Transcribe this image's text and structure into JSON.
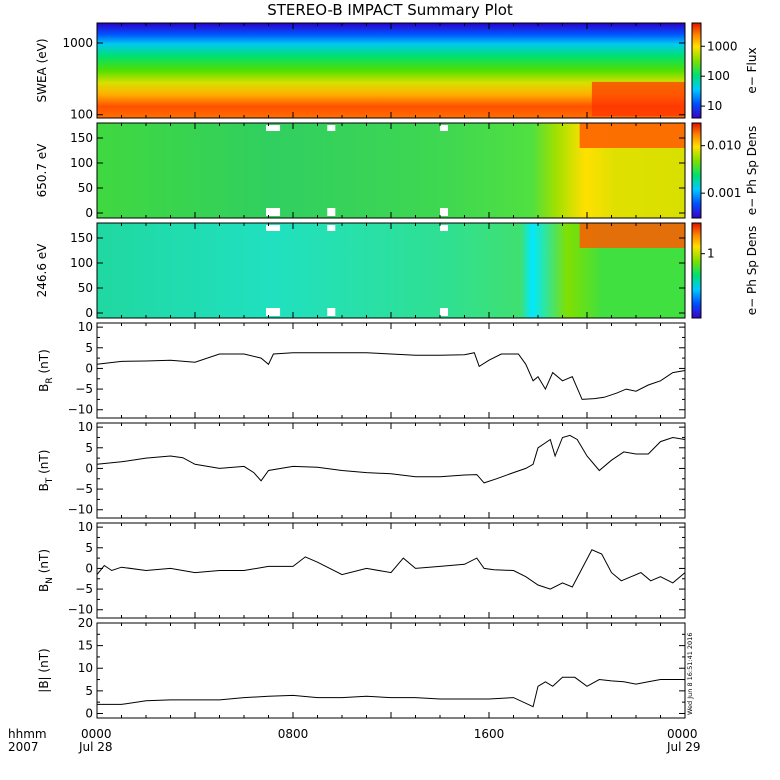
{
  "title": "STEREO-B IMPACT Summary Plot",
  "footer": {
    "row1_left": "hhmm",
    "row2_left": "2007",
    "stamp": "Wed Jun  8 16:51:41 2016"
  },
  "colors": {
    "line": "#000000",
    "mask": "#ffffff",
    "spectro_scale": [
      "#3a00c8",
      "#0050ff",
      "#00c8ff",
      "#00e070",
      "#7de000",
      "#ffe000",
      "#ff8000",
      "#e01000"
    ]
  },
  "chart_data": [
    {
      "type": "heatmap",
      "id": "swea",
      "ylabel": "SWEA (eV)",
      "yscale": "log",
      "ylim": [
        90,
        1900
      ],
      "yticks": [
        100,
        1000
      ],
      "ytick_labels": [
        "100",
        "1000"
      ],
      "colorbar": {
        "label": "e− Flux",
        "scale": "log",
        "range": [
          4,
          6000
        ],
        "ticks": [
          10,
          100,
          1000
        ],
        "tick_labels": [
          "10",
          "100",
          "1000"
        ]
      },
      "description_levels": {
        "low_energy_flux": 3000,
        "high_energy_flux": 5
      }
    },
    {
      "type": "heatmap",
      "id": "pad650",
      "ylabel": "650.7 eV",
      "yscale": "linear",
      "ylim": [
        -10,
        180
      ],
      "yticks": [
        0,
        50,
        100,
        150
      ],
      "ytick_labels": [
        "0",
        "50",
        "100",
        "150"
      ],
      "colorbar": {
        "label": "e− Ph Sp Dens",
        "scale": "log",
        "range": [
          0.0003,
          0.03
        ],
        "ticks": [
          0.001,
          0.01
        ],
        "tick_labels": [
          "0.001",
          "0.010"
        ]
      }
    },
    {
      "type": "heatmap",
      "id": "pad246",
      "ylabel": "246.6 eV",
      "yscale": "linear",
      "ylim": [
        -10,
        180
      ],
      "yticks": [
        0,
        50,
        100,
        150
      ],
      "ytick_labels": [
        "0",
        "50",
        "100",
        "150"
      ],
      "colorbar": {
        "label": "e− Ph Sp Dens",
        "scale": "log",
        "range": [
          0.1,
          3
        ],
        "ticks": [
          1
        ],
        "tick_labels": [
          "1"
        ]
      }
    },
    {
      "type": "line",
      "id": "br",
      "ylabel": "B",
      "ylabel_sub": "R",
      "ylabel_unit": "(nT)",
      "ylim": [
        -12,
        11
      ],
      "yticks": [
        -10,
        -5,
        0,
        5,
        10
      ],
      "ytick_labels": [
        "−10",
        "−5",
        "0",
        "5",
        "10"
      ],
      "x": [
        0,
        1,
        2,
        3,
        4,
        5,
        6,
        6.7,
        7.0,
        7.2,
        8,
        9,
        10,
        11,
        12,
        13,
        14,
        15,
        15.4,
        15.6,
        16,
        16.5,
        17.2,
        17.5,
        17.8,
        18.0,
        18.3,
        18.6,
        19.0,
        19.4,
        19.8,
        20.3,
        20.7,
        21.2,
        21.6,
        22.0,
        22.5,
        23.0,
        23.5,
        24.0
      ],
      "y": [
        1,
        1.7,
        1.8,
        2,
        1.5,
        3.5,
        3.5,
        2.5,
        1,
        3.5,
        3.8,
        3.8,
        3.8,
        3.8,
        3.5,
        3.2,
        3.2,
        3.3,
        3.8,
        0.5,
        2,
        3.5,
        3.5,
        1,
        -3,
        -2,
        -5,
        -1,
        -3,
        -2,
        -7.5,
        -7.3,
        -7,
        -6,
        -5,
        -5.5,
        -4,
        -3,
        -1,
        -0.5
      ]
    },
    {
      "type": "line",
      "id": "bt",
      "ylabel": "B",
      "ylabel_sub": "T",
      "ylabel_unit": "(nT)",
      "ylim": [
        -12,
        11
      ],
      "yticks": [
        -10,
        -5,
        0,
        5,
        10
      ],
      "ytick_labels": [
        "−10",
        "−5",
        "0",
        "5",
        "10"
      ],
      "x": [
        0,
        1,
        2,
        3,
        3.5,
        4,
        5,
        6,
        6.4,
        6.7,
        7,
        8,
        9,
        10,
        11,
        12,
        13,
        14,
        15,
        15.5,
        15.8,
        16.3,
        17,
        17.5,
        17.8,
        18,
        18.5,
        18.7,
        19,
        19.3,
        19.6,
        20,
        20.5,
        21,
        21.5,
        22,
        22.5,
        23,
        23.5,
        24
      ],
      "y": [
        1,
        1.6,
        2.5,
        3,
        2.6,
        1,
        0,
        0.5,
        -1,
        -3,
        -0.5,
        0.5,
        0.3,
        -0.5,
        -1,
        -1.3,
        -2,
        -2,
        -1.6,
        -1.5,
        -3.5,
        -2.5,
        -1,
        0,
        1,
        5,
        7,
        3,
        7.5,
        8,
        7,
        3,
        -0.5,
        2,
        4,
        3.5,
        3.5,
        6.5,
        7.5,
        7
      ]
    },
    {
      "type": "line",
      "id": "bn",
      "ylabel": "B",
      "ylabel_sub": "N",
      "ylabel_unit": "(nT)",
      "ylim": [
        -12,
        11
      ],
      "yticks": [
        -10,
        -5,
        0,
        5,
        10
      ],
      "ytick_labels": [
        "−10",
        "−5",
        "0",
        "5",
        "10"
      ],
      "x": [
        0,
        0.3,
        0.6,
        1,
        2,
        3,
        4,
        5,
        6,
        7,
        8,
        8.5,
        9,
        10,
        11,
        12,
        12.5,
        13,
        14,
        15,
        15.5,
        15.8,
        16.2,
        17,
        17.5,
        18,
        18.5,
        19,
        19.4,
        19.8,
        20.2,
        20.6,
        21.0,
        21.4,
        21.8,
        22.2,
        22.6,
        23.0,
        23.5,
        24.0
      ],
      "y": [
        -1.5,
        0.7,
        -0.5,
        0.3,
        -0.5,
        0,
        -1,
        -0.5,
        -0.5,
        0.5,
        0.5,
        2.8,
        1.5,
        -1.5,
        0,
        -1,
        2.5,
        0,
        0.5,
        1,
        2.5,
        0,
        -0.3,
        -0.5,
        -2,
        -4,
        -5,
        -3.5,
        -4.5,
        0,
        4.5,
        3.5,
        -1,
        -3,
        -2,
        -1,
        -3,
        -2,
        -3.5,
        -1
      ]
    },
    {
      "type": "line",
      "id": "btot",
      "ylabel": "|B|",
      "ylabel_unit": "(nT)",
      "ylim": [
        -1,
        20
      ],
      "yticks": [
        0,
        5,
        10,
        15,
        20
      ],
      "ytick_labels": [
        "0",
        "5",
        "10",
        "15",
        "20"
      ],
      "x": [
        0,
        1,
        2,
        3,
        4,
        5,
        6,
        7,
        8,
        9,
        10,
        11,
        12,
        13,
        14,
        15,
        16,
        17,
        17.8,
        18.0,
        18.3,
        18.6,
        19.0,
        19.5,
        20.0,
        20.5,
        21,
        21.5,
        22,
        22.5,
        23,
        23.5,
        24
      ],
      "y": [
        2,
        2,
        2.8,
        3,
        3,
        3,
        3.5,
        3.8,
        4,
        3.5,
        3.5,
        3.8,
        3.5,
        3.5,
        3.2,
        3.2,
        3.2,
        3.5,
        1.5,
        6,
        7,
        6,
        8,
        8,
        6,
        7.5,
        7.2,
        7,
        6.5,
        7,
        7.5,
        7.5,
        7.5
      ]
    }
  ],
  "x_axis": {
    "ticks": [
      0,
      8,
      16,
      24
    ],
    "tick_labels": [
      "0000",
      "0800",
      "1600",
      "0000"
    ],
    "date_labels": [
      "Jul 28",
      "Jul 29"
    ]
  }
}
